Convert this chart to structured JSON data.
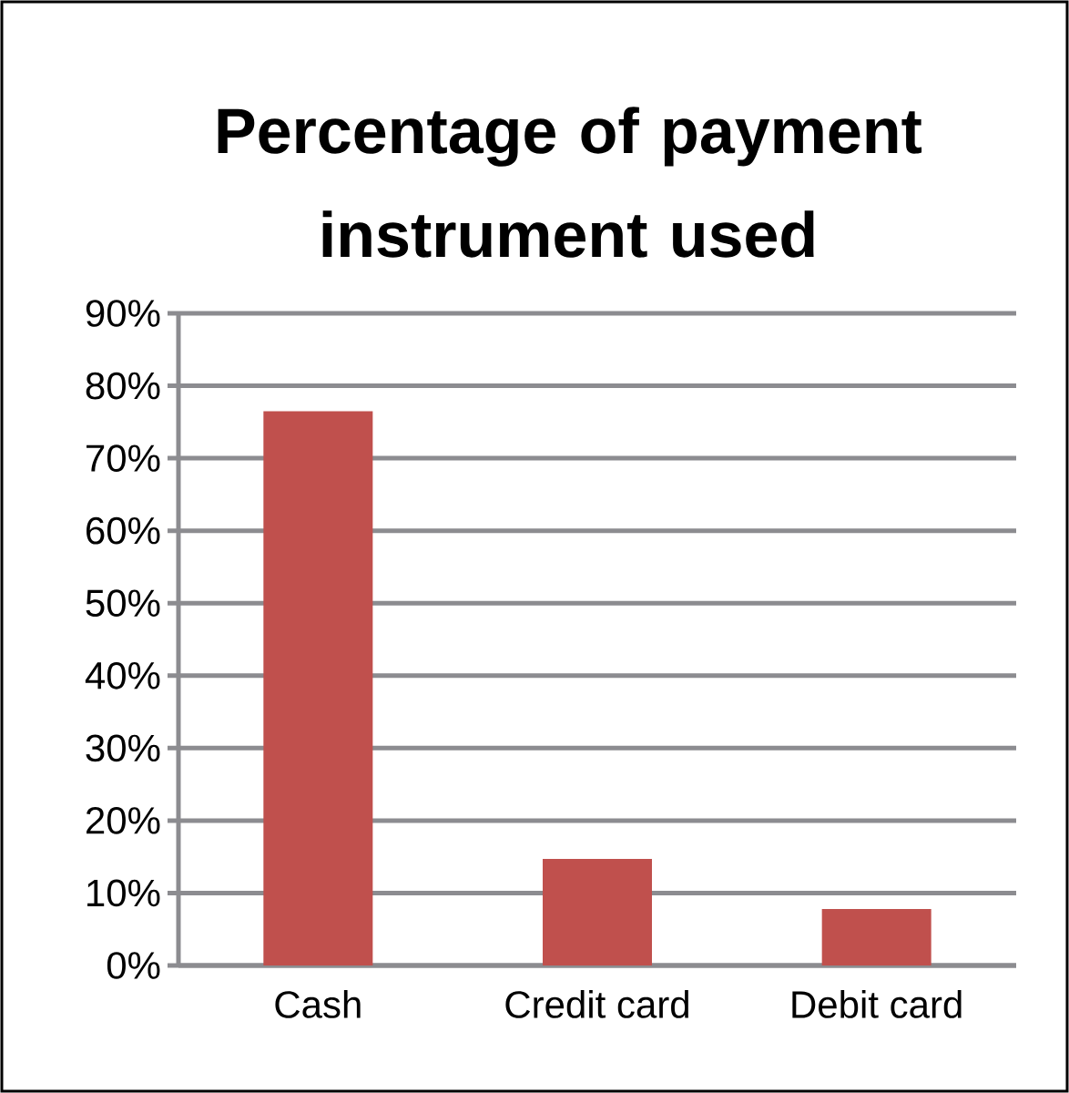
{
  "chart_data": {
    "type": "bar",
    "title": "Percentage of payment instrument used",
    "categories": [
      "Cash",
      "Credit card",
      "Debit card"
    ],
    "values": [
      76.5,
      14.7,
      7.8
    ],
    "color": "#c0504d",
    "ylim": [
      0,
      90
    ],
    "yticks": [
      {
        "value": 0,
        "label": "0%"
      },
      {
        "value": 10,
        "label": "10%"
      },
      {
        "value": 20,
        "label": "20%"
      },
      {
        "value": 30,
        "label": "30%"
      },
      {
        "value": 40,
        "label": "40%"
      },
      {
        "value": 50,
        "label": "50%"
      },
      {
        "value": 60,
        "label": "60%"
      },
      {
        "value": 70,
        "label": "70%"
      },
      {
        "value": 80,
        "label": "80%"
      },
      {
        "value": 90,
        "label": "90%"
      }
    ],
    "grid": "y"
  }
}
